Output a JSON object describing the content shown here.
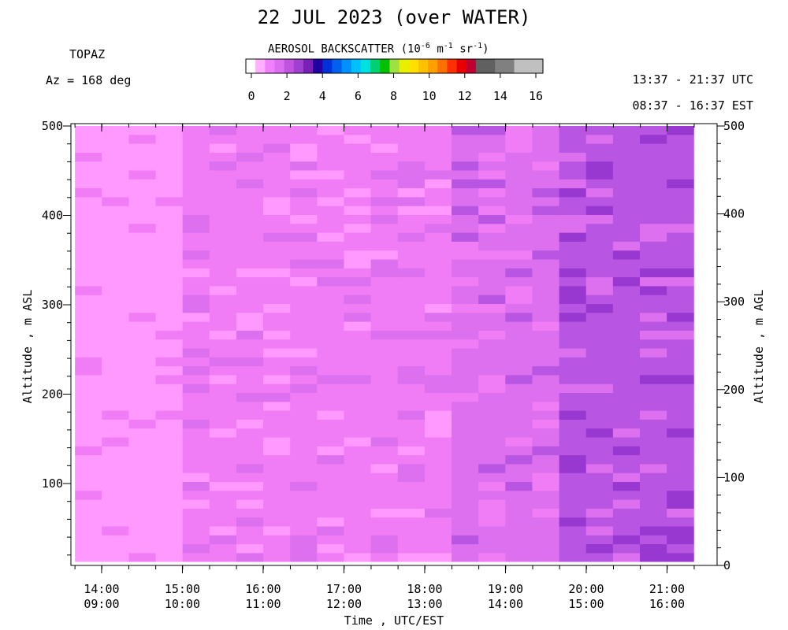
{
  "header": {
    "title": "22 JUL 2023 (over WATER)",
    "instrument": "TOPAZ",
    "azimuth": "Az = 168 deg",
    "time_utc": "13:37 - 21:37 UTC",
    "time_est": "08:37 - 16:37 EST"
  },
  "colorbar": {
    "title_prefix": "AEROSOL BACKSCATTER (10",
    "title_exp1": "-6",
    "title_mid1": " m",
    "title_exp2": "-1",
    "title_mid2": " sr",
    "title_exp3": "-1",
    "title_suffix": ")",
    "ticks": [
      "0",
      "2",
      "4",
      "6",
      "8",
      "10",
      "12",
      "14",
      "16"
    ],
    "colors": [
      "#ffffff",
      "#ffb0ff",
      "#f080ff",
      "#dc6cf0",
      "#c054e0",
      "#a040d0",
      "#7820b8",
      "#2000a0",
      "#0030d8",
      "#0060f0",
      "#0090ff",
      "#00c0ff",
      "#00e0e0",
      "#00d070",
      "#00c000",
      "#a0e040",
      "#e8f000",
      "#ffe000",
      "#ffc000",
      "#ffa000",
      "#ff7000",
      "#ff3000",
      "#e80000",
      "#c00030",
      "#606060",
      "#606060",
      "#808080",
      "#808080",
      "#c0c0c0",
      "#c0c0c0",
      "#c0c0c0"
    ]
  },
  "axes": {
    "ylabel_left": "Altitude , m ASL",
    "ylabel_right": "Altitude , m AGL",
    "xlabel": "Time , UTC/EST"
  },
  "chart_data": {
    "type": "heatmap",
    "title": "22 JUL 2023 (over WATER)",
    "xlabel": "Time , UTC/EST",
    "ylabel": "Altitude , m ASL",
    "ylabel_right": "Altitude , m AGL",
    "colorbar_label": "AEROSOL BACKSCATTER (10^-6 m^-1 sr^-1)",
    "colorbar_range": [
      0,
      16
    ],
    "xlim": [
      13.62,
      21.62
    ],
    "ylim_left": [
      10,
      500
    ],
    "ylim_right": [
      0,
      500
    ],
    "x_ticks": [
      {
        "utc": "14:00",
        "est": "09:00",
        "value": 14
      },
      {
        "utc": "15:00",
        "est": "10:00",
        "value": 15
      },
      {
        "utc": "16:00",
        "est": "11:00",
        "value": 16
      },
      {
        "utc": "17:00",
        "est": "12:00",
        "value": 17
      },
      {
        "utc": "18:00",
        "est": "13:00",
        "value": 18
      },
      {
        "utc": "19:00",
        "est": "14:00",
        "value": 19
      },
      {
        "utc": "20:00",
        "est": "15:00",
        "value": 20
      },
      {
        "utc": "21:00",
        "est": "16:00",
        "value": 21
      }
    ],
    "y_ticks_left": [
      100,
      200,
      300,
      400,
      500
    ],
    "y_ticks_right": [
      0,
      100,
      200,
      300,
      400,
      500
    ],
    "data_x_range": [
      13.67,
      21.33
    ],
    "data_y_range": [
      10,
      500
    ],
    "backscatter_by_time_block": [
      {
        "utc_start": "13:40",
        "utc_end": "15:00",
        "typical_value": 1.0
      },
      {
        "utc_start": "15:00",
        "utc_end": "17:00",
        "typical_value": 1.5
      },
      {
        "utc_start": "17:00",
        "utc_end": "18:20",
        "typical_value": 1.5
      },
      {
        "utc_start": "18:20",
        "utc_end": "19:40",
        "typical_value": 2.0
      },
      {
        "utc_start": "19:40",
        "utc_end": "21:20",
        "typical_value": 2.5
      }
    ]
  }
}
